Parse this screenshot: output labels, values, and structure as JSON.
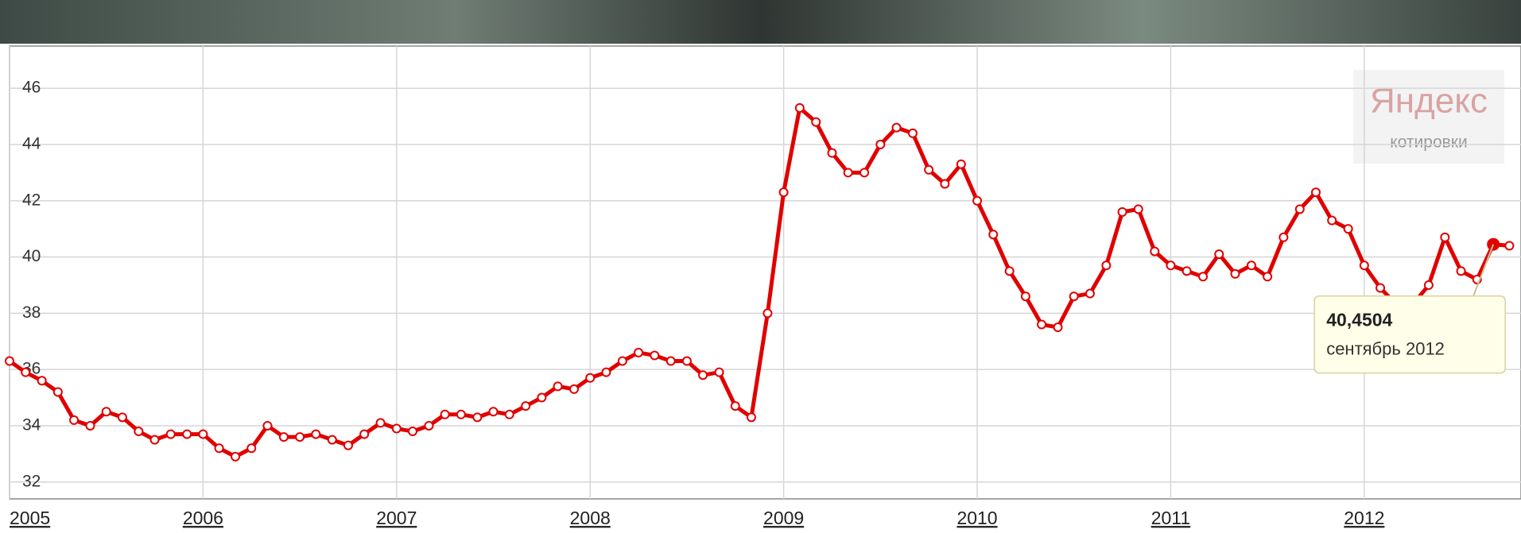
{
  "chart_data": {
    "type": "line",
    "x": [
      2005,
      2005.083,
      2005.167,
      2005.25,
      2005.333,
      2005.417,
      2005.5,
      2005.583,
      2005.667,
      2005.75,
      2005.833,
      2005.917,
      2006,
      2006.083,
      2006.167,
      2006.25,
      2006.333,
      2006.417,
      2006.5,
      2006.583,
      2006.667,
      2006.75,
      2006.833,
      2006.917,
      2007,
      2007.083,
      2007.167,
      2007.25,
      2007.333,
      2007.417,
      2007.5,
      2007.583,
      2007.667,
      2007.75,
      2007.833,
      2007.917,
      2008,
      2008.083,
      2008.167,
      2008.25,
      2008.333,
      2008.417,
      2008.5,
      2008.583,
      2008.667,
      2008.75,
      2008.833,
      2008.917,
      2009,
      2009.083,
      2009.167,
      2009.25,
      2009.333,
      2009.417,
      2009.5,
      2009.583,
      2009.667,
      2009.75,
      2009.833,
      2009.917,
      2010,
      2010.083,
      2010.167,
      2010.25,
      2010.333,
      2010.417,
      2010.5,
      2010.583,
      2010.667,
      2010.75,
      2010.833,
      2010.917,
      2011,
      2011.083,
      2011.167,
      2011.25,
      2011.333,
      2011.417,
      2011.5,
      2011.583,
      2011.667,
      2011.75,
      2011.833,
      2011.917,
      2012,
      2012.083,
      2012.167,
      2012.25,
      2012.333,
      2012.417,
      2012.5,
      2012.583,
      2012.667,
      2012.75
    ],
    "series": [
      {
        "color": "#e00000",
        "values": [
          36.3,
          35.9,
          35.6,
          35.2,
          34.2,
          34.0,
          34.5,
          34.3,
          33.8,
          33.5,
          33.7,
          33.7,
          33.7,
          33.2,
          32.9,
          33.2,
          34.0,
          33.6,
          33.6,
          33.7,
          33.5,
          33.3,
          33.7,
          34.1,
          33.9,
          33.8,
          34.0,
          34.4,
          34.4,
          34.3,
          34.5,
          34.4,
          34.7,
          35.0,
          35.4,
          35.3,
          35.7,
          35.9,
          36.3,
          36.6,
          36.5,
          36.3,
          36.3,
          35.8,
          35.9,
          34.7,
          34.3,
          38.0,
          42.3,
          45.3,
          44.8,
          43.7,
          43.0,
          43.0,
          44.0,
          44.6,
          44.4,
          43.1,
          42.6,
          43.3,
          42.0,
          40.8,
          39.5,
          38.6,
          37.6,
          37.5,
          38.6,
          38.7,
          39.7,
          41.6,
          41.7,
          40.2,
          39.7,
          39.5,
          39.3,
          40.1,
          39.4,
          39.7,
          39.3,
          40.7,
          41.7,
          42.3,
          41.3,
          41.0,
          39.7,
          38.9,
          38.3,
          38.3,
          39.0,
          40.7,
          39.5,
          39.2,
          40.4504,
          40.4
        ]
      }
    ],
    "xlim": [
      2005,
      2012.81
    ],
    "xticks": [
      2005,
      2006,
      2007,
      2008,
      2009,
      2010,
      2011,
      2012
    ],
    "ylim": [
      31.4,
      47.5
    ],
    "yticks": [
      32,
      34,
      36,
      38,
      40,
      42,
      44,
      46
    ],
    "grid": true,
    "tooltip": {
      "index": 92,
      "value_label": "40,4504",
      "date": "сентябрь 2012"
    },
    "watermark": {
      "brand": "Яндекс",
      "sub": "котировки"
    }
  }
}
